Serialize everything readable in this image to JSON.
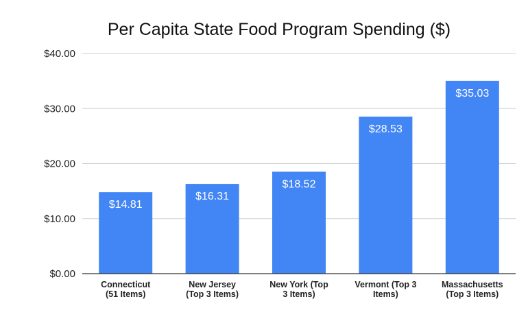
{
  "chart_data": {
    "type": "bar",
    "title": "Per Capita State Food Program Spending ($)",
    "xlabel": "",
    "ylabel": "",
    "ylim": [
      0,
      40
    ],
    "y_ticks": [
      0,
      10,
      20,
      30,
      40
    ],
    "y_tick_labels": [
      "$0.00",
      "$10.00",
      "$20.00",
      "$30.00",
      "$40.00"
    ],
    "categories": [
      [
        "Connecticut",
        "(51 Items)"
      ],
      [
        "New Jersey",
        "(Top 3 Items)"
      ],
      [
        "New York (Top",
        "3 Items)"
      ],
      [
        "Vermont (Top 3",
        "Items)"
      ],
      [
        "Massachusetts",
        "(Top 3 Items)"
      ]
    ],
    "values": [
      14.81,
      16.31,
      18.52,
      28.53,
      35.03
    ],
    "data_labels": [
      "$14.81",
      "$16.31",
      "$18.52",
      "$28.53",
      "$35.03"
    ],
    "bar_color": "#4285f4",
    "grid": true,
    "legend": "none"
  }
}
